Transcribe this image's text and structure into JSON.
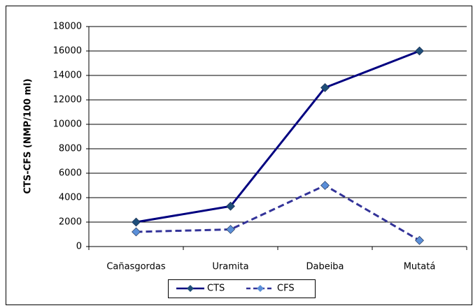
{
  "chart_data": {
    "type": "line",
    "ylabel": "CTS-CFS  (NMP/100  ml)",
    "categories": [
      "Cañasgordas",
      "Uramita",
      "Dabeiba",
      "Mutatá"
    ],
    "series": [
      {
        "name": "CTS",
        "color": "#000080",
        "marker_color": "#1f4e79",
        "dashed": false,
        "values": [
          2000,
          3300,
          13000,
          16000
        ]
      },
      {
        "name": "CFS",
        "color": "#333399",
        "marker_color": "#5b8fd8",
        "dashed": true,
        "values": [
          1200,
          1400,
          5000,
          500
        ]
      }
    ],
    "ylim": [
      0,
      18000
    ],
    "yticks": [
      0,
      2000,
      4000,
      6000,
      8000,
      10000,
      12000,
      14000,
      16000,
      18000
    ],
    "grid": true,
    "legend": "bottom"
  }
}
